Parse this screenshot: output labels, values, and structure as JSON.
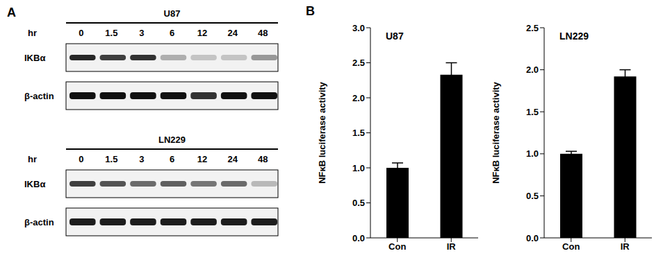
{
  "panel_labels": [
    "A",
    "B"
  ],
  "blots": [
    {
      "title": "U87",
      "time_label": "hr",
      "times": [
        0,
        1.5,
        3,
        6,
        12,
        24,
        48
      ],
      "rows": [
        {
          "label": "IKBα",
          "intensity": [
            0.9,
            0.8,
            0.85,
            0.3,
            0.2,
            0.2,
            0.4
          ]
        },
        {
          "label": "β-actin",
          "intensity": [
            1,
            1,
            1,
            1,
            0.85,
            1,
            1
          ]
        }
      ]
    },
    {
      "title": "LN229",
      "time_label": "hr",
      "times": [
        0,
        1.5,
        3,
        6,
        12,
        24,
        48
      ],
      "rows": [
        {
          "label": "IKBα",
          "intensity": [
            0.8,
            0.7,
            0.6,
            0.65,
            0.55,
            0.6,
            0.25
          ]
        },
        {
          "label": "β-actin",
          "intensity": [
            0.95,
            0.95,
            0.95,
            0.95,
            0.95,
            0.95,
            0.95
          ]
        }
      ]
    }
  ],
  "chart_data": [
    {
      "type": "bar",
      "title": "U87",
      "y_label": "NFκB luciferase activity",
      "categories": [
        "Con",
        "IR"
      ],
      "values": [
        1.0,
        2.33
      ],
      "errors": [
        0.07,
        0.17
      ],
      "color": "#000000",
      "ylim": [
        0,
        3
      ],
      "yticks": [
        {
          "value": 0,
          "label": "0.0"
        },
        {
          "value": 0.5,
          "label": "0.5"
        },
        {
          "value": 1,
          "label": "1.0"
        },
        {
          "value": 1.5,
          "label": "1.5"
        },
        {
          "value": 2,
          "label": "2.0"
        },
        {
          "value": 2.5,
          "label": "2.5"
        },
        {
          "value": 3,
          "label": "3.0"
        }
      ]
    },
    {
      "type": "bar",
      "title": "LN229",
      "y_label": "NFκB luciferase activity",
      "categories": [
        "Con",
        "IR"
      ],
      "values": [
        1.0,
        1.92
      ],
      "errors": [
        0.03,
        0.08
      ],
      "color": "#000000",
      "ylim": [
        0,
        2.5
      ],
      "yticks": [
        {
          "value": 0,
          "label": "0.0"
        },
        {
          "value": 0.5,
          "label": "0.5"
        },
        {
          "value": 1,
          "label": "1.0"
        },
        {
          "value": 1.5,
          "label": "1.5"
        },
        {
          "value": 2,
          "label": "2.0"
        },
        {
          "value": 2.5,
          "label": "2.5"
        }
      ]
    }
  ]
}
